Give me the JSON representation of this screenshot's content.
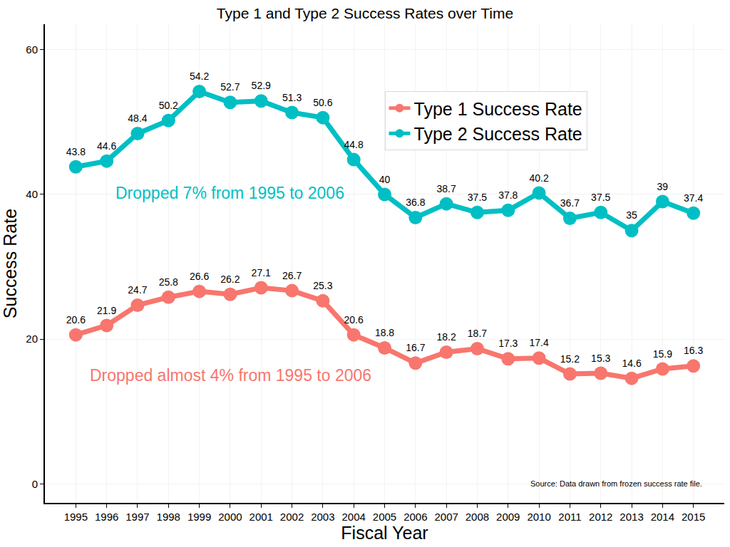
{
  "chart_data": {
    "type": "line",
    "title": "Type 1 and Type 2 Success Rates over Time",
    "x_label": "Fiscal Year",
    "y_label": "Success Rate",
    "x": [
      1995,
      1996,
      1997,
      1998,
      1999,
      2000,
      2001,
      2002,
      2003,
      2004,
      2005,
      2006,
      2007,
      2008,
      2009,
      2010,
      2011,
      2012,
      2013,
      2014,
      2015
    ],
    "series": [
      {
        "name": "Type 1 Success Rate",
        "color": "#F8766D",
        "values": [
          20.6,
          21.9,
          24.7,
          25.8,
          26.6,
          26.2,
          27.1,
          26.7,
          25.3,
          20.6,
          18.8,
          16.7,
          18.2,
          18.7,
          17.3,
          17.4,
          15.2,
          15.3,
          14.6,
          15.9,
          16.3
        ]
      },
      {
        "name": "Type 2 Success Rate",
        "color": "#00BFC4",
        "values": [
          43.8,
          44.6,
          48.4,
          50.2,
          54.2,
          52.7,
          52.9,
          51.3,
          50.6,
          44.8,
          40,
          36.8,
          38.7,
          37.5,
          37.8,
          40.2,
          36.7,
          37.5,
          35,
          39,
          37.4
        ]
      }
    ],
    "xlim": [
      1994,
      2016
    ],
    "xticks": [
      1995,
      1996,
      1997,
      1998,
      1999,
      2000,
      2001,
      2002,
      2003,
      2004,
      2005,
      2006,
      2007,
      2008,
      2009,
      2010,
      2011,
      2012,
      2013,
      2014,
      2015
    ],
    "ylim": [
      -2.6,
      63.5
    ],
    "yticks": [
      0,
      20,
      40,
      60
    ],
    "grid": true,
    "legend": "upper right",
    "marker": "circle",
    "line_style": "solid",
    "data_labels": true,
    "annotations": [
      {
        "text": "Dropped 7% from 1995 to 2006",
        "color": "#00BFC4"
      },
      {
        "text": "Dropped almost 4% from 1995 to 2006",
        "color": "#F8766D"
      },
      {
        "text": "Source: Data drawn from frozen success rate file.",
        "color": "#000000"
      }
    ]
  }
}
